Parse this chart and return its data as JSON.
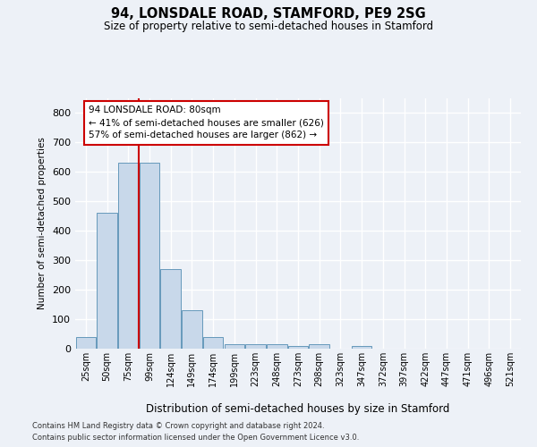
{
  "title": "94, LONSDALE ROAD, STAMFORD, PE9 2SG",
  "subtitle": "Size of property relative to semi-detached houses in Stamford",
  "xlabel": "Distribution of semi-detached houses by size in Stamford",
  "ylabel": "Number of semi-detached properties",
  "categories": [
    "25sqm",
    "50sqm",
    "75sqm",
    "99sqm",
    "124sqm",
    "149sqm",
    "174sqm",
    "199sqm",
    "223sqm",
    "248sqm",
    "273sqm",
    "298sqm",
    "323sqm",
    "347sqm",
    "372sqm",
    "397sqm",
    "422sqm",
    "447sqm",
    "471sqm",
    "496sqm",
    "521sqm"
  ],
  "bar_heights": [
    40,
    460,
    630,
    630,
    270,
    130,
    40,
    15,
    15,
    15,
    10,
    15,
    0,
    10,
    0,
    0,
    0,
    0,
    0,
    0,
    0
  ],
  "bar_color": "#c8d8ea",
  "bar_edge_color": "#6699bb",
  "vline_x": 2.5,
  "vline_color": "#cc0000",
  "annotation_text": "94 LONSDALE ROAD: 80sqm\n← 41% of semi-detached houses are smaller (626)\n57% of semi-detached houses are larger (862) →",
  "annotation_box_facecolor": "#ffffff",
  "annotation_box_edgecolor": "#cc0000",
  "ylim": [
    0,
    850
  ],
  "yticks": [
    0,
    100,
    200,
    300,
    400,
    500,
    600,
    700,
    800
  ],
  "background_color": "#edf1f7",
  "grid_color": "#ffffff",
  "footer1": "Contains HM Land Registry data © Crown copyright and database right 2024.",
  "footer2": "Contains public sector information licensed under the Open Government Licence v3.0."
}
